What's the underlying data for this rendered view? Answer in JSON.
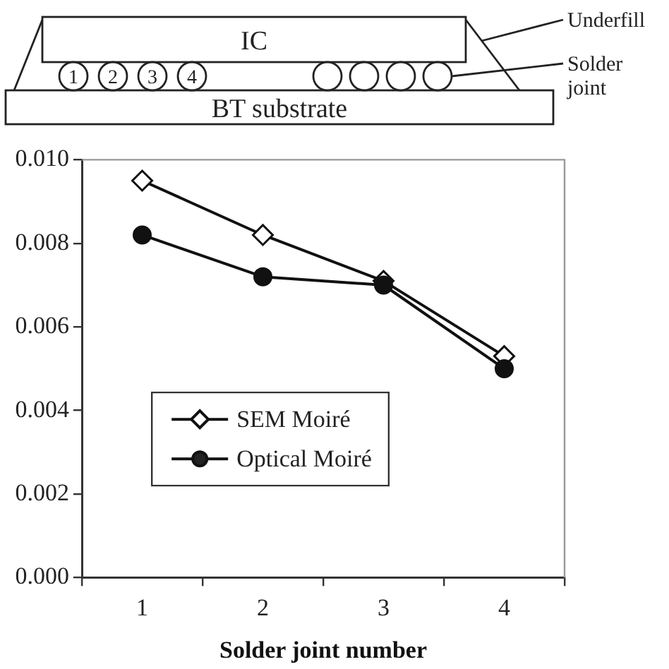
{
  "chart_data": {
    "type": "line",
    "xlabel": "Solder joint number",
    "categories": [
      "1",
      "2",
      "3",
      "4"
    ],
    "series": [
      {
        "name": "SEM Moiré",
        "color": "#111111",
        "marker": "diamond",
        "values": [
          0.0095,
          0.0082,
          0.0071,
          0.0053
        ]
      },
      {
        "name": "Optical Moiré",
        "color": "#111111",
        "marker": "circle",
        "values": [
          0.0082,
          0.0072,
          0.007,
          0.005
        ]
      }
    ],
    "ylim": [
      0,
      0.01
    ],
    "yticks": [
      {
        "value": 0,
        "label": "0.000"
      },
      {
        "value": 0.002,
        "label": "0.002"
      },
      {
        "value": 0.004,
        "label": "0.004"
      },
      {
        "value": 0.006,
        "label": "0.006"
      },
      {
        "value": 0.008,
        "label": "0.008"
      },
      {
        "value": 0.01,
        "label": "0.010"
      }
    ],
    "grid": false,
    "legend": "bottom left",
    "annotations": [
      "IC",
      "BT substrate",
      "1",
      "2",
      "3",
      "4",
      "Underfill",
      "Solder joint"
    ]
  }
}
